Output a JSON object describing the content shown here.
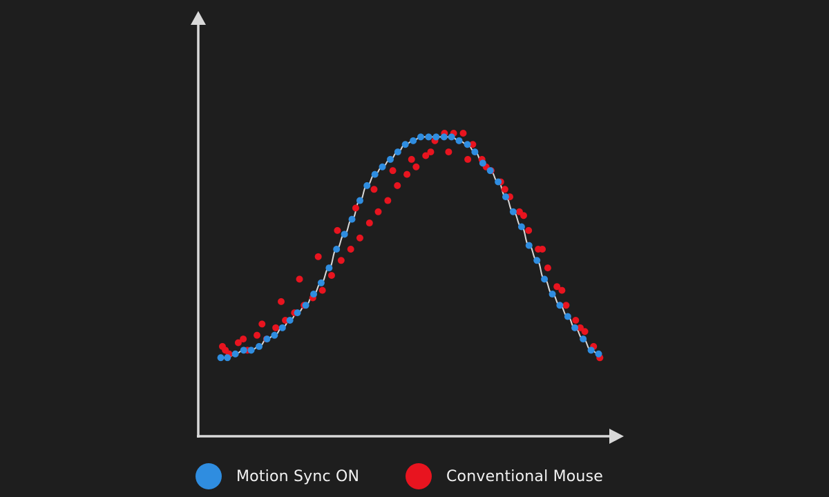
{
  "chart_data": {
    "type": "scatter",
    "title": "",
    "xlabel": "",
    "ylabel": "",
    "grid": false,
    "legend_position": "bottom-center",
    "xlim": [
      0,
      100
    ],
    "ylim": [
      0,
      100
    ],
    "axis_color": "#d9d9d9",
    "background": "#1e1e1e",
    "series": [
      {
        "name": "Motion Sync ON",
        "color": "#2f8de0",
        "show_trend_line": true,
        "trend_line_color": "#d8d8d8",
        "x": [
          5.4,
          7.0,
          8.9,
          10.9,
          12.7,
          14.6,
          16.5,
          18.3,
          20.2,
          22.0,
          23.8,
          25.8,
          27.7,
          29.5,
          31.4,
          33.2,
          35.1,
          36.9,
          38.8,
          40.5,
          42.4,
          44.2,
          46.1,
          47.9,
          49.7,
          51.6,
          53.4,
          55.3,
          57.1,
          59.0,
          60.8,
          62.6,
          64.6,
          66.4,
          68.3,
          70.1,
          72.0,
          73.8,
          75.6,
          77.6,
          79.4,
          81.3,
          83.1,
          85.0,
          86.8,
          88.7,
          90.4,
          92.4,
          94.3,
          96.1
        ],
        "y": [
          21,
          21,
          22,
          23,
          23,
          24,
          26,
          27,
          29,
          31,
          33,
          35,
          38,
          41,
          45,
          50,
          54,
          58,
          63,
          67,
          70,
          72,
          74,
          76,
          78,
          79,
          80,
          80,
          80,
          80,
          80,
          79,
          78,
          76,
          73,
          71,
          68,
          64,
          60,
          56,
          51,
          47,
          42,
          38,
          35,
          32,
          29,
          26,
          23,
          22
        ]
      },
      {
        "name": "Conventional Mouse",
        "color": "#e8141f",
        "show_trend_line": false,
        "x": [
          5.8,
          7.4,
          9.6,
          11.8,
          14.1,
          16.4,
          18.6,
          20.9,
          23.1,
          25.4,
          27.5,
          29.8,
          32.0,
          34.3,
          36.6,
          38.8,
          41.1,
          43.2,
          45.5,
          47.8,
          50.1,
          52.3,
          54.6,
          56.8,
          59.1,
          61.3,
          63.6,
          65.9,
          68.1,
          70.3,
          72.6,
          74.8,
          77.1,
          79.3,
          81.6,
          83.9,
          86.1,
          88.3,
          90.6,
          92.8,
          94.9,
          96.4,
          6.5,
          10.8,
          15.3,
          19.9,
          24.3,
          28.8,
          33.4,
          37.8,
          42.2,
          46.7,
          51.2,
          55.8,
          60.1,
          64.7,
          69.1,
          73.6,
          78.1,
          82.6,
          87.3,
          91.7,
          96.4
        ],
        "y": [
          24,
          22,
          25,
          23,
          27,
          26,
          29,
          31,
          33,
          35,
          37,
          39,
          43,
          47,
          50,
          53,
          57,
          60,
          63,
          67,
          70,
          72,
          75,
          79,
          81,
          81,
          81,
          78,
          74,
          71,
          68,
          64,
          60,
          55,
          50,
          45,
          40,
          35,
          31,
          28,
          24,
          21,
          23,
          26,
          30,
          36,
          42,
          48,
          55,
          61,
          66,
          71,
          74,
          76,
          76,
          74,
          72,
          66,
          59,
          50,
          39,
          29,
          21
        ]
      }
    ]
  },
  "legend": {
    "items": [
      {
        "label": "Motion Sync ON",
        "color": "#2f8de0"
      },
      {
        "label": "Conventional Mouse",
        "color": "#e8141f"
      }
    ]
  }
}
